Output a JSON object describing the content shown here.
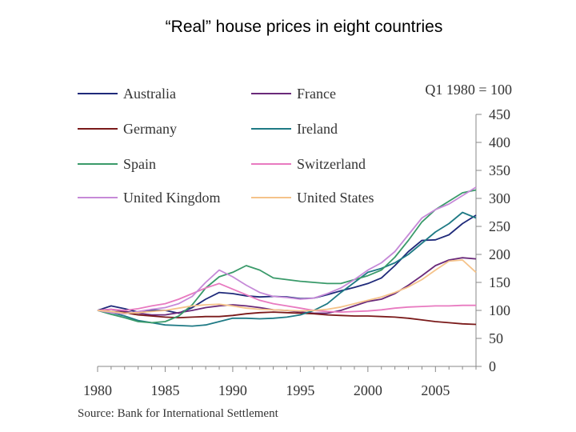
{
  "slide": {
    "title": "“Real” house prices in eight countries"
  },
  "chart_data": {
    "type": "line",
    "title": "",
    "index_note": "Q1 1980 = 100",
    "source": "Source: Bank for International Settlement",
    "xlim": [
      1980,
      2008
    ],
    "ylim": [
      0,
      450
    ],
    "x_ticks": [
      1980,
      1985,
      1990,
      1995,
      2000,
      2005
    ],
    "y_ticks": [
      0,
      50,
      100,
      150,
      200,
      250,
      300,
      350,
      400,
      450
    ],
    "grid": false,
    "legend": "top",
    "series": [
      {
        "name": "Australia",
        "color": "#1f2a7a",
        "points": [
          [
            1980,
            100
          ],
          [
            1981,
            108
          ],
          [
            1982,
            103
          ],
          [
            1983,
            97
          ],
          [
            1984,
            100
          ],
          [
            1985,
            100
          ],
          [
            1986,
            95
          ],
          [
            1987,
            105
          ],
          [
            1988,
            120
          ],
          [
            1989,
            132
          ],
          [
            1990,
            130
          ],
          [
            1991,
            126
          ],
          [
            1992,
            124
          ],
          [
            1993,
            125
          ],
          [
            1994,
            124
          ],
          [
            1995,
            121
          ],
          [
            1996,
            122
          ],
          [
            1997,
            128
          ],
          [
            1998,
            135
          ],
          [
            1999,
            141
          ],
          [
            2000,
            148
          ],
          [
            2001,
            158
          ],
          [
            2002,
            180
          ],
          [
            2003,
            205
          ],
          [
            2004,
            225
          ],
          [
            2005,
            226
          ],
          [
            2006,
            235
          ],
          [
            2007,
            255
          ],
          [
            2008,
            270
          ]
        ]
      },
      {
        "name": "France",
        "color": "#6a2a7a",
        "points": [
          [
            1980,
            100
          ],
          [
            1981,
            102
          ],
          [
            1982,
            98
          ],
          [
            1983,
            95
          ],
          [
            1984,
            92
          ],
          [
            1985,
            92
          ],
          [
            1986,
            96
          ],
          [
            1987,
            100
          ],
          [
            1988,
            105
          ],
          [
            1989,
            108
          ],
          [
            1990,
            110
          ],
          [
            1991,
            108
          ],
          [
            1992,
            105
          ],
          [
            1993,
            101
          ],
          [
            1994,
            100
          ],
          [
            1995,
            97
          ],
          [
            1996,
            95
          ],
          [
            1997,
            95
          ],
          [
            1998,
            100
          ],
          [
            1999,
            108
          ],
          [
            2000,
            116
          ],
          [
            2001,
            120
          ],
          [
            2002,
            130
          ],
          [
            2003,
            145
          ],
          [
            2004,
            162
          ],
          [
            2005,
            180
          ],
          [
            2006,
            190
          ],
          [
            2007,
            194
          ],
          [
            2008,
            192
          ]
        ]
      },
      {
        "name": "Germany",
        "color": "#7a1a1a",
        "points": [
          [
            1980,
            100
          ],
          [
            1981,
            98
          ],
          [
            1982,
            96
          ],
          [
            1983,
            92
          ],
          [
            1984,
            90
          ],
          [
            1985,
            88
          ],
          [
            1986,
            87
          ],
          [
            1987,
            88
          ],
          [
            1988,
            89
          ],
          [
            1989,
            89
          ],
          [
            1990,
            91
          ],
          [
            1991,
            94
          ],
          [
            1992,
            96
          ],
          [
            1993,
            97
          ],
          [
            1994,
            96
          ],
          [
            1995,
            95
          ],
          [
            1996,
            94
          ],
          [
            1997,
            92
          ],
          [
            1998,
            91
          ],
          [
            1999,
            90
          ],
          [
            2000,
            90
          ],
          [
            2001,
            89
          ],
          [
            2002,
            88
          ],
          [
            2003,
            86
          ],
          [
            2004,
            83
          ],
          [
            2005,
            80
          ],
          [
            2006,
            78
          ],
          [
            2007,
            76
          ],
          [
            2008,
            75
          ]
        ]
      },
      {
        "name": "Ireland",
        "color": "#1f7a85",
        "points": [
          [
            1980,
            100
          ],
          [
            1981,
            96
          ],
          [
            1982,
            90
          ],
          [
            1983,
            82
          ],
          [
            1984,
            78
          ],
          [
            1985,
            74
          ],
          [
            1986,
            73
          ],
          [
            1987,
            72
          ],
          [
            1988,
            74
          ],
          [
            1989,
            80
          ],
          [
            1990,
            86
          ],
          [
            1991,
            86
          ],
          [
            1992,
            85
          ],
          [
            1993,
            86
          ],
          [
            1994,
            88
          ],
          [
            1995,
            92
          ],
          [
            1996,
            100
          ],
          [
            1997,
            112
          ],
          [
            1998,
            132
          ],
          [
            1999,
            150
          ],
          [
            2000,
            168
          ],
          [
            2001,
            175
          ],
          [
            2002,
            185
          ],
          [
            2003,
            200
          ],
          [
            2004,
            220
          ],
          [
            2005,
            240
          ],
          [
            2006,
            255
          ],
          [
            2007,
            275
          ],
          [
            2008,
            265
          ]
        ]
      },
      {
        "name": "Spain",
        "color": "#3a9a6a",
        "points": [
          [
            1980,
            100
          ],
          [
            1981,
            93
          ],
          [
            1982,
            87
          ],
          [
            1983,
            80
          ],
          [
            1984,
            78
          ],
          [
            1985,
            80
          ],
          [
            1986,
            90
          ],
          [
            1987,
            110
          ],
          [
            1988,
            140
          ],
          [
            1989,
            160
          ],
          [
            1990,
            168
          ],
          [
            1991,
            180
          ],
          [
            1992,
            172
          ],
          [
            1993,
            158
          ],
          [
            1994,
            155
          ],
          [
            1995,
            152
          ],
          [
            1996,
            150
          ],
          [
            1997,
            148
          ],
          [
            1998,
            148
          ],
          [
            1999,
            155
          ],
          [
            2000,
            162
          ],
          [
            2001,
            172
          ],
          [
            2002,
            195
          ],
          [
            2003,
            225
          ],
          [
            2004,
            258
          ],
          [
            2005,
            280
          ],
          [
            2006,
            295
          ],
          [
            2007,
            310
          ],
          [
            2008,
            315
          ]
        ]
      },
      {
        "name": "Switzerland",
        "color": "#e87ac0",
        "points": [
          [
            1980,
            100
          ],
          [
            1981,
            102
          ],
          [
            1982,
            100
          ],
          [
            1983,
            103
          ],
          [
            1984,
            108
          ],
          [
            1985,
            112
          ],
          [
            1986,
            120
          ],
          [
            1987,
            130
          ],
          [
            1988,
            140
          ],
          [
            1989,
            148
          ],
          [
            1990,
            138
          ],
          [
            1991,
            128
          ],
          [
            1992,
            118
          ],
          [
            1993,
            112
          ],
          [
            1994,
            108
          ],
          [
            1995,
            104
          ],
          [
            1996,
            100
          ],
          [
            1997,
            98
          ],
          [
            1998,
            97
          ],
          [
            1999,
            98
          ],
          [
            2000,
            99
          ],
          [
            2001,
            101
          ],
          [
            2002,
            104
          ],
          [
            2003,
            106
          ],
          [
            2004,
            107
          ],
          [
            2005,
            108
          ],
          [
            2006,
            108
          ],
          [
            2007,
            109
          ],
          [
            2008,
            109
          ]
        ]
      },
      {
        "name": "United Kingdom",
        "color": "#c68ad8",
        "points": [
          [
            1980,
            100
          ],
          [
            1981,
            96
          ],
          [
            1982,
            94
          ],
          [
            1983,
            98
          ],
          [
            1984,
            102
          ],
          [
            1985,
            105
          ],
          [
            1986,
            112
          ],
          [
            1987,
            125
          ],
          [
            1988,
            150
          ],
          [
            1989,
            172
          ],
          [
            1990,
            160
          ],
          [
            1991,
            145
          ],
          [
            1992,
            132
          ],
          [
            1993,
            125
          ],
          [
            1994,
            123
          ],
          [
            1995,
            120
          ],
          [
            1996,
            122
          ],
          [
            1997,
            130
          ],
          [
            1998,
            140
          ],
          [
            1999,
            155
          ],
          [
            2000,
            172
          ],
          [
            2001,
            185
          ],
          [
            2002,
            205
          ],
          [
            2003,
            235
          ],
          [
            2004,
            265
          ],
          [
            2005,
            280
          ],
          [
            2006,
            290
          ],
          [
            2007,
            305
          ],
          [
            2008,
            320
          ]
        ]
      },
      {
        "name": "United States",
        "color": "#f5c38a",
        "points": [
          [
            1980,
            100
          ],
          [
            1981,
            98
          ],
          [
            1982,
            95
          ],
          [
            1983,
            96
          ],
          [
            1984,
            98
          ],
          [
            1985,
            100
          ],
          [
            1986,
            104
          ],
          [
            1987,
            108
          ],
          [
            1988,
            110
          ],
          [
            1989,
            111
          ],
          [
            1990,
            108
          ],
          [
            1991,
            104
          ],
          [
            1992,
            102
          ],
          [
            1993,
            101
          ],
          [
            1994,
            100
          ],
          [
            1995,
            99
          ],
          [
            1996,
            100
          ],
          [
            1997,
            102
          ],
          [
            1998,
            106
          ],
          [
            1999,
            112
          ],
          [
            2000,
            118
          ],
          [
            2001,
            124
          ],
          [
            2002,
            132
          ],
          [
            2003,
            142
          ],
          [
            2004,
            155
          ],
          [
            2005,
            172
          ],
          [
            2006,
            188
          ],
          [
            2007,
            190
          ],
          [
            2008,
            168
          ]
        ]
      }
    ]
  }
}
